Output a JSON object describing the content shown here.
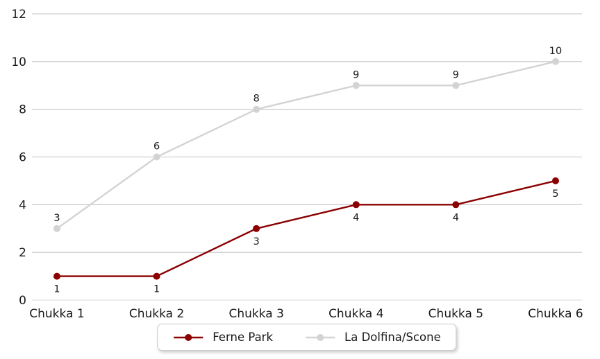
{
  "chart_data": {
    "type": "line",
    "categories": [
      "Chukka 1",
      "Chukka 2",
      "Chukka 3",
      "Chukka 4",
      "Chukka 5",
      "Chukka 6"
    ],
    "series": [
      {
        "name": "Ferne Park",
        "values": [
          1,
          1,
          3,
          4,
          4,
          5
        ],
        "color": "#8b0000",
        "label_position": "below"
      },
      {
        "name": "La Dolfina/Scone",
        "values": [
          3,
          6,
          8,
          9,
          9,
          10
        ],
        "color": "#d3d3d3",
        "label_position": "above"
      }
    ],
    "title": "",
    "xlabel": "",
    "ylabel": "",
    "ylim": [
      0,
      12
    ],
    "yticks": [
      0,
      2,
      4,
      6,
      8,
      10,
      12
    ],
    "grid": true,
    "data_labels": true,
    "legend_position": "bottom",
    "colors": {
      "background": "#ffffff",
      "grid_line": "#c3c3c3",
      "axis_line": "#d9d9d9",
      "text": "#1a1a1a"
    }
  }
}
